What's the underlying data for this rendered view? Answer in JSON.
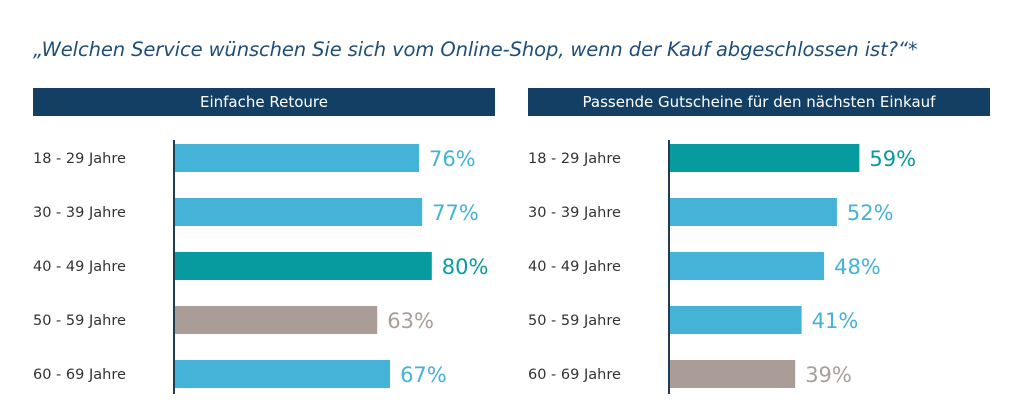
{
  "title": "„Welchen Service wünschen Sie sich vom Online-Shop, wenn der Kauf abgeschlossen ist?“*",
  "colors": {
    "title": "#1f4e79",
    "header_bg": "#123f63",
    "bar_default": "#45b2d8",
    "bar_highlight": "#079a9f",
    "bar_lowest": "#aa9d98",
    "axis_line": "#1f3b57"
  },
  "chart_data": [
    {
      "type": "bar",
      "orientation": "horizontal",
      "title": "Einfache Retoure",
      "categories": [
        "18 - 29 Jahre",
        "30 - 39 Jahre",
        "40 - 49 Jahre",
        "50 - 59 Jahre",
        "60 - 69 Jahre"
      ],
      "values": [
        76,
        77,
        80,
        63,
        67
      ],
      "value_labels": [
        "76%",
        "77%",
        "80%",
        "63%",
        "67%"
      ],
      "highlight": [
        "default",
        "default",
        "highlight",
        "lowest",
        "default"
      ],
      "xlim": [
        0,
        100
      ],
      "grid": false
    },
    {
      "type": "bar",
      "orientation": "horizontal",
      "title": "Passende Gutscheine für den nächsten Einkauf",
      "categories": [
        "18 - 29 Jahre",
        "30 - 39 Jahre",
        "40 - 49 Jahre",
        "50 - 59 Jahre",
        "60 - 69 Jahre"
      ],
      "values": [
        59,
        52,
        48,
        41,
        39
      ],
      "value_labels": [
        "59%",
        "52%",
        "48%",
        "41%",
        "39%"
      ],
      "highlight": [
        "highlight",
        "default",
        "default",
        "default",
        "lowest"
      ],
      "xlim": [
        0,
        100
      ],
      "grid": false
    }
  ]
}
